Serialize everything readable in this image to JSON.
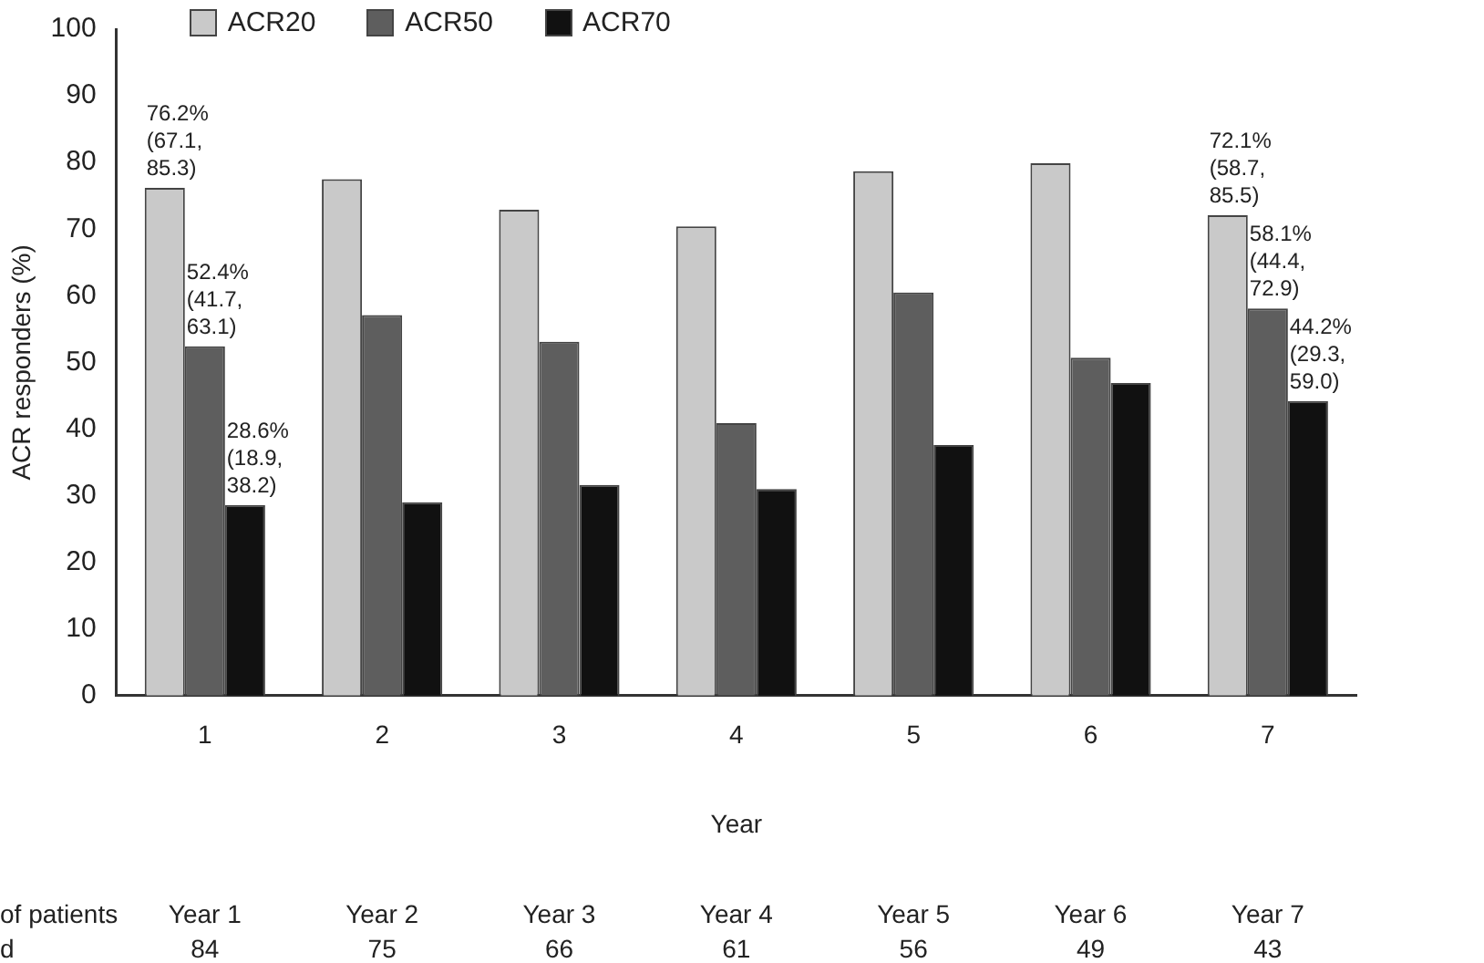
{
  "chart_data": {
    "type": "bar",
    "ylabel": "ACR responders (%)",
    "xlabel": "Year",
    "categories": [
      "1",
      "2",
      "3",
      "4",
      "5",
      "6",
      "7"
    ],
    "series": [
      {
        "name": "ACR20",
        "color": "#c9c9c9",
        "values": [
          76.2,
          77.5,
          72.9,
          70.4,
          78.7,
          79.9,
          72.1
        ],
        "value_labels": [
          "76.2% (67.1, 85.3)",
          null,
          null,
          null,
          null,
          null,
          "72.1% (58.7, 85.5)"
        ]
      },
      {
        "name": "ACR50",
        "color": "#5e5e5e",
        "values": [
          52.4,
          57.1,
          53.1,
          40.9,
          60.5,
          50.7,
          58.1
        ],
        "value_labels": [
          "52.4% (41.7, 63.1)",
          null,
          null,
          null,
          null,
          null,
          "58.1% (44.4, 72.9)"
        ]
      },
      {
        "name": "ACR70",
        "color": "#111111",
        "values": [
          28.6,
          29.0,
          31.6,
          31.0,
          37.6,
          46.9,
          44.2
        ],
        "value_labels": [
          "28.6% (18.9, 38.2)",
          null,
          null,
          null,
          null,
          null,
          "44.2% (29.3, 59.0)"
        ]
      }
    ],
    "ylim": [
      0,
      100
    ],
    "yticks": [
      0,
      10,
      20,
      30,
      40,
      50,
      60,
      70,
      80,
      90,
      100
    ],
    "grid": false,
    "legend": "top left",
    "annotations": [
      "of patients",
      "d",
      "Year 1",
      "84",
      "Year 2",
      "75",
      "Year 3",
      "66",
      "Year 4",
      "61",
      "Year 5",
      "56",
      "Year 6",
      "49",
      "Year 7",
      "43"
    ]
  }
}
